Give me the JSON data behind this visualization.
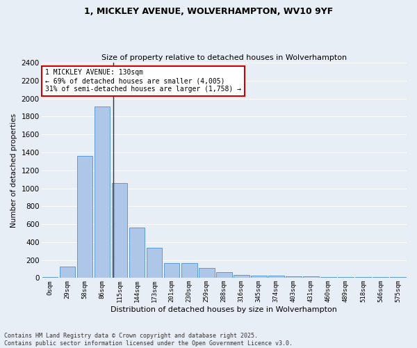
{
  "title1": "1, MICKLEY AVENUE, WOLVERHAMPTON, WV10 9YF",
  "title2": "Size of property relative to detached houses in Wolverhampton",
  "xlabel": "Distribution of detached houses by size in Wolverhampton",
  "ylabel": "Number of detached properties",
  "categories": [
    "0sqm",
    "29sqm",
    "58sqm",
    "86sqm",
    "115sqm",
    "144sqm",
    "173sqm",
    "201sqm",
    "230sqm",
    "259sqm",
    "288sqm",
    "316sqm",
    "345sqm",
    "374sqm",
    "403sqm",
    "431sqm",
    "460sqm",
    "489sqm",
    "518sqm",
    "546sqm",
    "575sqm"
  ],
  "values": [
    10,
    125,
    1360,
    1910,
    1055,
    560,
    335,
    170,
    170,
    110,
    65,
    38,
    30,
    25,
    20,
    15,
    12,
    12,
    10,
    8,
    10
  ],
  "bar_color": "#aec6e8",
  "bar_edge_color": "#5b9bd5",
  "annotation_text_line1": "1 MICKLEY AVENUE: 130sqm",
  "annotation_text_line2": "← 69% of detached houses are smaller (4,005)",
  "annotation_text_line3": "31% of semi-detached houses are larger (1,758) →",
  "annotation_box_color": "#ffffff",
  "annotation_box_edge": "#cc0000",
  "vline_color": "#333333",
  "bg_color": "#e8eef6",
  "grid_color": "#ffffff",
  "footer": "Contains HM Land Registry data © Crown copyright and database right 2025.\nContains public sector information licensed under the Open Government Licence v3.0.",
  "ylim": [
    0,
    2400
  ],
  "yticks": [
    0,
    200,
    400,
    600,
    800,
    1000,
    1200,
    1400,
    1600,
    1800,
    2000,
    2200,
    2400
  ],
  "vline_index": 3.62
}
